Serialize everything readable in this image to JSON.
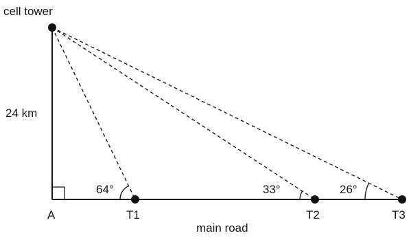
{
  "labels": {
    "tower": "cell tower",
    "height": "24 km",
    "A": "A",
    "T1": "T1",
    "T2": "T2",
    "T3": "T3",
    "road": "main road",
    "angle_T1": "64°",
    "angle_T2": "33°",
    "angle_T3": "26°"
  }
}
